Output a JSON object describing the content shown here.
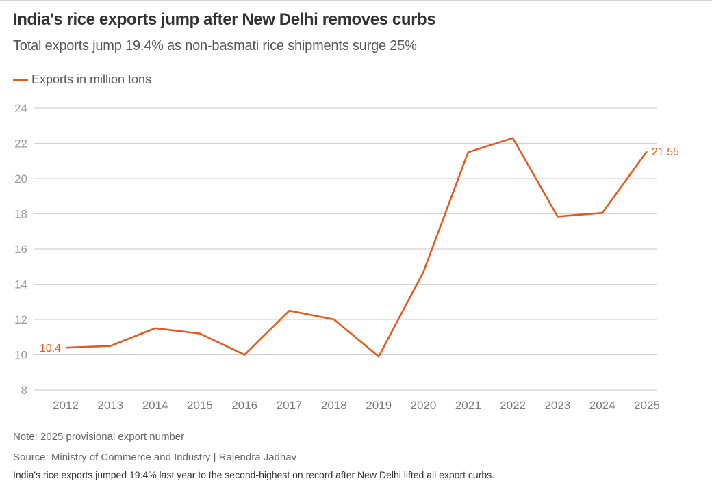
{
  "title": "India's rice exports jump after New Delhi removes curbs",
  "subtitle": "Total exports jump 19.4% as non-basmati rice shipments surge 25%",
  "legend": {
    "label": "Exports in million tons",
    "color": "#e8571b"
  },
  "note": "Note: 2025 provisional export number",
  "source": "Source: Ministry of Commerce and Industry | Rajendra Jadhav",
  "caption": "India's rice exports jumped 19.4% last year to the second-highest on record after New Delhi lifted all export curbs.",
  "chart_data": {
    "type": "line",
    "title": "India's rice exports jump after New Delhi removes curbs",
    "subtitle": "Total exports jump 19.4% as non-basmati rice shipments surge 25%",
    "xlabel": "",
    "ylabel": "",
    "x": [
      "2012",
      "2013",
      "2014",
      "2015",
      "2016",
      "2017",
      "2018",
      "2019",
      "2020",
      "2021",
      "2022",
      "2023",
      "2024",
      "2025"
    ],
    "series": [
      {
        "name": "Exports in million tons",
        "color": "#e8571b",
        "values": [
          10.4,
          10.5,
          11.5,
          11.2,
          10.0,
          12.5,
          12.0,
          9.9,
          14.7,
          21.5,
          22.3,
          17.85,
          18.05,
          21.55
        ]
      }
    ],
    "ylim": [
      8,
      24
    ],
    "yticks": [
      8,
      10,
      12,
      14,
      16,
      18,
      20,
      22,
      24
    ],
    "grid": true,
    "legend_position": "top-left",
    "annotations": [
      {
        "x": "2012",
        "text": "10.4",
        "position": "left"
      },
      {
        "x": "2025",
        "text": "21.55",
        "position": "right"
      }
    ]
  }
}
